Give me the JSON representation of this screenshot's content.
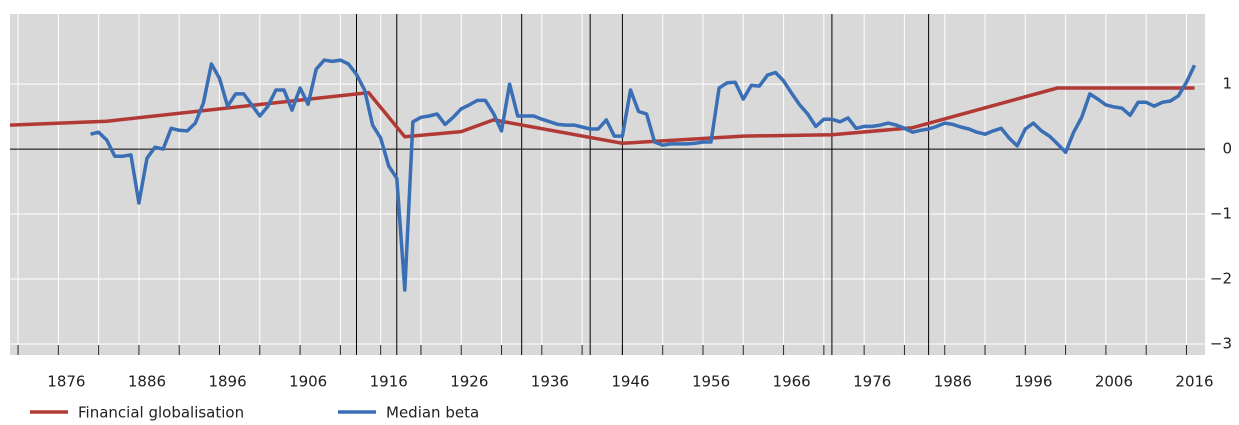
{
  "chart_data": {
    "type": "line",
    "xlim": [
      1869,
      2017.3
    ],
    "ylim": [
      -3.17,
      2.08
    ],
    "xticks": [
      1876,
      1886,
      1896,
      1906,
      1916,
      1926,
      1936,
      1946,
      1956,
      1966,
      1976,
      1986,
      1996,
      2006,
      2016
    ],
    "xtick_marks": [
      1870,
      1875,
      1880,
      1885,
      1890,
      1895,
      1900,
      1905,
      1910,
      1915,
      1920,
      1925,
      1930,
      1935,
      1940,
      1945,
      1950,
      1955,
      1960,
      1965,
      1970,
      1975,
      1980,
      1985,
      1990,
      1995,
      2000,
      2005,
      2010,
      2015
    ],
    "yticks": [
      {
        "value": -3,
        "label": "−3"
      },
      {
        "value": -2,
        "label": "−2"
      },
      {
        "value": -1,
        "label": "−1"
      },
      0,
      1
    ],
    "event_lines": [
      1912,
      1917,
      1932.5,
      1941,
      1945,
      1971,
      1983
    ],
    "grid": true,
    "series": [
      {
        "name": "Financial globalisation",
        "color": "#b23a36",
        "x": [
          1869,
          1881,
          1913.5,
          1918,
          1925,
          1929,
          1945,
          1960,
          1971,
          1981,
          1999,
          2016
        ],
        "values": [
          0.37,
          0.43,
          0.87,
          0.19,
          0.27,
          0.45,
          0.09,
          0.2,
          0.22,
          0.33,
          0.94,
          0.94
        ]
      },
      {
        "name": "Median beta",
        "color": "#3a6eb5",
        "x": [
          1879,
          1880,
          1881,
          1882,
          1883,
          1884,
          1885,
          1886,
          1887,
          1888,
          1889,
          1890,
          1891,
          1892,
          1893,
          1894,
          1895,
          1896,
          1897,
          1898,
          1899,
          1900,
          1901,
          1902,
          1903,
          1904,
          1905,
          1906,
          1907,
          1908,
          1909,
          1910,
          1911,
          1912,
          1913,
          1914,
          1915,
          1916,
          1917,
          1918,
          1919,
          1920,
          1921,
          1922,
          1923,
          1924,
          1925,
          1926,
          1927,
          1928,
          1929,
          1930,
          1931,
          1932,
          1933,
          1934,
          1935,
          1936,
          1937,
          1938,
          1939,
          1940,
          1941,
          1942,
          1943,
          1944,
          1945,
          1946,
          1947,
          1948,
          1949,
          1950,
          1951,
          1952,
          1953,
          1954,
          1955,
          1956,
          1957,
          1958,
          1959,
          1960,
          1961,
          1962,
          1963,
          1964,
          1965,
          1966,
          1967,
          1968,
          1969,
          1970,
          1971,
          1972,
          1973,
          1974,
          1975,
          1976,
          1977,
          1978,
          1979,
          1980,
          1981,
          1982,
          1983,
          1984,
          1985,
          1986,
          1987,
          1988,
          1989,
          1990,
          1991,
          1992,
          1993,
          1994,
          1995,
          1996,
          1997,
          1998,
          1999,
          2000,
          2001,
          2002,
          2003,
          2004,
          2005,
          2006,
          2007,
          2008,
          2009,
          2010,
          2011,
          2012,
          2013,
          2014,
          2015,
          2016
        ],
        "values": [
          0.23,
          0.26,
          0.14,
          -0.11,
          -0.11,
          -0.09,
          -0.83,
          -0.14,
          0.03,
          0.0,
          0.32,
          0.29,
          0.28,
          0.4,
          0.71,
          1.31,
          1.09,
          0.66,
          0.85,
          0.85,
          0.68,
          0.51,
          0.66,
          0.91,
          0.91,
          0.6,
          0.94,
          0.69,
          1.23,
          1.37,
          1.35,
          1.37,
          1.31,
          1.15,
          0.91,
          0.37,
          0.17,
          -0.26,
          -0.45,
          -2.17,
          0.42,
          0.49,
          0.51,
          0.54,
          0.38,
          0.49,
          0.62,
          0.68,
          0.75,
          0.75,
          0.55,
          0.28,
          1.0,
          0.51,
          0.51,
          0.51,
          0.46,
          0.42,
          0.38,
          0.37,
          0.37,
          0.34,
          0.31,
          0.31,
          0.45,
          0.2,
          0.2,
          0.91,
          0.58,
          0.54,
          0.11,
          0.06,
          0.08,
          0.08,
          0.08,
          0.09,
          0.11,
          0.11,
          0.94,
          1.02,
          1.03,
          0.77,
          0.98,
          0.97,
          1.14,
          1.18,
          1.05,
          0.86,
          0.68,
          0.54,
          0.35,
          0.46,
          0.46,
          0.42,
          0.48,
          0.32,
          0.35,
          0.35,
          0.37,
          0.4,
          0.37,
          0.32,
          0.26,
          0.29,
          0.31,
          0.35,
          0.4,
          0.38,
          0.34,
          0.31,
          0.26,
          0.23,
          0.28,
          0.32,
          0.17,
          0.05,
          0.31,
          0.4,
          0.28,
          0.2,
          0.08,
          -0.05,
          0.26,
          0.49,
          0.85,
          0.77,
          0.68,
          0.65,
          0.63,
          0.52,
          0.72,
          0.72,
          0.66,
          0.72,
          0.74,
          0.82,
          1.03,
          1.29
        ]
      }
    ]
  }
}
